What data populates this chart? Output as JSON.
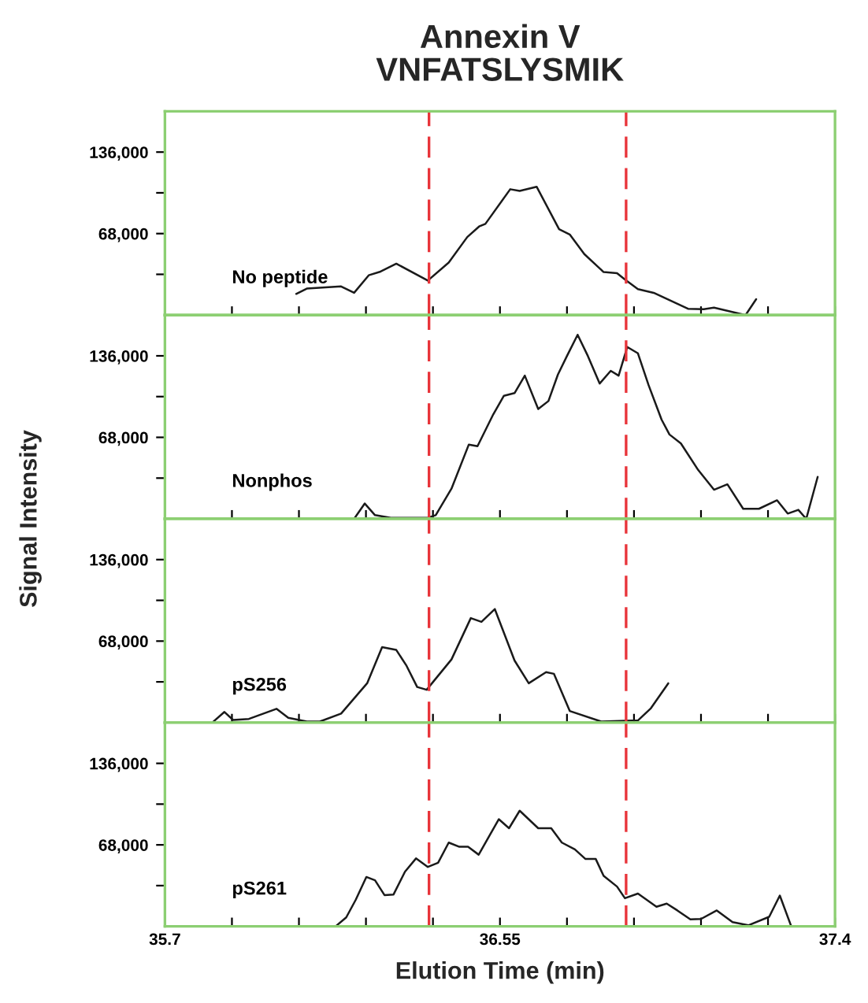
{
  "chart_data": [
    {
      "type": "line",
      "title": "Annexin V\nVNFATSLYSMIK",
      "ylabel": "Signal Intensity",
      "tick_labels": "y",
      "grid": false,
      "xlim": [
        35.7,
        37.4
      ],
      "xticks": [
        {
          "value": 35.7,
          "label": null
        },
        {
          "value": 35.87,
          "label": null
        },
        {
          "value": 36.04,
          "label": null
        },
        {
          "value": 36.21,
          "label": null
        },
        {
          "value": 36.38,
          "label": null
        },
        {
          "value": 36.55,
          "label": null
        },
        {
          "value": 36.72,
          "label": null
        },
        {
          "value": 36.89,
          "label": null
        },
        {
          "value": 37.06,
          "label": null
        },
        {
          "value": 37.23,
          "label": null
        },
        {
          "value": 37.4,
          "label": null
        }
      ],
      "ylim": [
        0,
        170000
      ],
      "yticks": [
        {
          "value": 34000,
          "label": null
        },
        {
          "value": 68000,
          "label": "68,000"
        },
        {
          "value": 102000,
          "label": null
        },
        {
          "value": 136000,
          "label": "136,000"
        }
      ],
      "ref_lines": [
        {
          "axis": "x",
          "value": 36.37,
          "color": "#e8343a",
          "line_style": "dashed"
        },
        {
          "axis": "x",
          "value": 36.87,
          "color": "#e8343a",
          "line_style": "dashed"
        }
      ],
      "series": [
        {
          "name": "No peptide",
          "color": "#1a1a1a",
          "x": [
            36.033,
            36.06,
            36.147,
            36.18,
            36.217,
            36.247,
            36.287,
            36.367,
            36.42,
            36.467,
            36.497,
            36.513,
            36.576,
            36.6,
            36.643,
            36.7,
            36.727,
            36.764,
            36.813,
            36.847,
            36.867,
            36.9,
            36.94,
            37.027,
            37.067,
            37.093,
            37.173,
            37.2
          ],
          "values": [
            17700,
            22100,
            23900,
            18600,
            33200,
            36300,
            42900,
            28800,
            43800,
            65100,
            73900,
            76100,
            105000,
            103600,
            107100,
            71700,
            67300,
            50900,
            35900,
            35000,
            29700,
            21700,
            18600,
            5300,
            4900,
            6200,
            0,
            13300
          ]
        }
      ]
    },
    {
      "type": "line",
      "tick_labels": "y",
      "grid": false,
      "xlim": [
        35.7,
        37.4
      ],
      "xticks": [
        {
          "value": 35.7,
          "label": null
        },
        {
          "value": 35.87,
          "label": null
        },
        {
          "value": 36.04,
          "label": null
        },
        {
          "value": 36.21,
          "label": null
        },
        {
          "value": 36.38,
          "label": null
        },
        {
          "value": 36.55,
          "label": null
        },
        {
          "value": 36.72,
          "label": null
        },
        {
          "value": 36.89,
          "label": null
        },
        {
          "value": 37.06,
          "label": null
        },
        {
          "value": 37.23,
          "label": null
        },
        {
          "value": 37.4,
          "label": null
        }
      ],
      "ylim": [
        0,
        170000
      ],
      "yticks": [
        {
          "value": 34000,
          "label": null
        },
        {
          "value": 68000,
          "label": "68,000"
        },
        {
          "value": 102000,
          "label": null
        },
        {
          "value": 136000,
          "label": "136,000"
        }
      ],
      "ref_lines": [
        {
          "axis": "x",
          "value": 36.37,
          "color": "#e8343a",
          "line_style": "dashed"
        },
        {
          "axis": "x",
          "value": 36.87,
          "color": "#e8343a",
          "line_style": "dashed"
        }
      ],
      "series": [
        {
          "name": "Nonphos",
          "color": "#1a1a1a",
          "x": [
            36.18,
            36.207,
            36.233,
            36.273,
            36.367,
            36.387,
            36.427,
            36.471,
            36.493,
            36.533,
            36.56,
            36.587,
            36.613,
            36.647,
            36.673,
            36.697,
            36.72,
            36.747,
            36.773,
            36.803,
            36.831,
            36.851,
            36.873,
            36.9,
            36.927,
            36.96,
            36.98,
            37.009,
            37.053,
            37.093,
            37.127,
            37.167,
            37.207,
            37.253,
            37.28,
            37.307,
            37.327,
            37.356
          ],
          "values": [
            0,
            12800,
            3100,
            900,
            900,
            3100,
            25200,
            62000,
            60600,
            87200,
            102700,
            104900,
            119500,
            91600,
            98300,
            120400,
            135900,
            153600,
            135900,
            112900,
            123500,
            119500,
            143400,
            138100,
            111600,
            82800,
            70400,
            62900,
            40700,
            24300,
            28800,
            8400,
            8400,
            15500,
            4400,
            7500,
            0,
            35000
          ]
        }
      ]
    },
    {
      "type": "line",
      "tick_labels": "y",
      "grid": false,
      "xlim": [
        35.7,
        37.4
      ],
      "xticks": [
        {
          "value": 35.7,
          "label": null
        },
        {
          "value": 35.87,
          "label": null
        },
        {
          "value": 36.04,
          "label": null
        },
        {
          "value": 36.21,
          "label": null
        },
        {
          "value": 36.38,
          "label": null
        },
        {
          "value": 36.55,
          "label": null
        },
        {
          "value": 36.72,
          "label": null
        },
        {
          "value": 36.89,
          "label": null
        },
        {
          "value": 37.06,
          "label": null
        },
        {
          "value": 37.23,
          "label": null
        },
        {
          "value": 37.4,
          "label": null
        }
      ],
      "ylim": [
        0,
        170000
      ],
      "yticks": [
        {
          "value": 34000,
          "label": null
        },
        {
          "value": 68000,
          "label": "68,000"
        },
        {
          "value": 102000,
          "label": null
        },
        {
          "value": 136000,
          "label": "136,000"
        }
      ],
      "ref_lines": [
        {
          "axis": "x",
          "value": 36.37,
          "color": "#e8343a",
          "line_style": "dashed"
        },
        {
          "axis": "x",
          "value": 36.87,
          "color": "#e8343a",
          "line_style": "dashed"
        }
      ],
      "series": [
        {
          "name": "pS256",
          "color": "#1a1a1a",
          "x": [
            35.82,
            35.851,
            35.873,
            35.913,
            35.983,
            36.013,
            36.06,
            36.093,
            36.147,
            36.213,
            36.251,
            36.287,
            36.313,
            36.34,
            36.364,
            36.427,
            36.476,
            36.503,
            36.537,
            36.587,
            36.623,
            36.667,
            36.687,
            36.727,
            36.807,
            36.9,
            36.933,
            36.977
          ],
          "values": [
            0,
            8900,
            2200,
            3100,
            11500,
            4000,
            900,
            900,
            7500,
            32800,
            62900,
            60600,
            47400,
            29700,
            27400,
            52700,
            87200,
            84100,
            94700,
            51800,
            32800,
            42100,
            40700,
            9700,
            900,
            1800,
            12000,
            32800
          ]
        }
      ]
    },
    {
      "type": "line",
      "xlabel": "Elution Time (min)",
      "grid": false,
      "xlim": [
        35.7,
        37.4
      ],
      "xticks": [
        35.7,
        {
          "value": 35.87,
          "label": null
        },
        {
          "value": 36.04,
          "label": null
        },
        {
          "value": 36.21,
          "label": null
        },
        {
          "value": 36.38,
          "label": null
        },
        36.55,
        {
          "value": 36.72,
          "label": null
        },
        {
          "value": 36.89,
          "label": null
        },
        {
          "value": 37.06,
          "label": null
        },
        {
          "value": 37.23,
          "label": null
        },
        37.4
      ],
      "ylim": [
        0,
        170000
      ],
      "yticks": [
        {
          "value": 34000,
          "label": null
        },
        {
          "value": 68000,
          "label": "68,000"
        },
        {
          "value": 102000,
          "label": null
        },
        {
          "value": 136000,
          "label": "136,000"
        }
      ],
      "ref_lines": [
        {
          "axis": "x",
          "value": 36.37,
          "color": "#e8343a",
          "line_style": "dashed"
        },
        {
          "axis": "x",
          "value": 36.87,
          "color": "#e8343a",
          "line_style": "dashed"
        }
      ],
      "series": [
        {
          "name": "pS261",
          "color": "#1a1a1a",
          "x": [
            36.133,
            36.16,
            36.184,
            36.211,
            36.233,
            36.257,
            36.28,
            36.309,
            36.337,
            36.367,
            36.393,
            36.42,
            36.447,
            36.469,
            36.496,
            36.524,
            36.547,
            36.573,
            36.6,
            36.647,
            36.68,
            36.707,
            36.74,
            36.767,
            36.793,
            36.813,
            36.847,
            36.867,
            36.9,
            36.947,
            36.973,
            37.0,
            37.033,
            37.06,
            37.1,
            37.14,
            37.18,
            37.233,
            37.26,
            37.289
          ],
          "values": [
            0,
            7500,
            22100,
            41200,
            38500,
            26100,
            26600,
            45600,
            56700,
            49600,
            53100,
            69900,
            66400,
            66400,
            59800,
            76100,
            89400,
            81900,
            96500,
            81900,
            81900,
            69900,
            64200,
            56200,
            56200,
            42100,
            33200,
            23500,
            27400,
            16400,
            19000,
            13300,
            5800,
            6200,
            13300,
            3500,
            900,
            8000,
            25700,
            0
          ]
        }
      ]
    }
  ]
}
